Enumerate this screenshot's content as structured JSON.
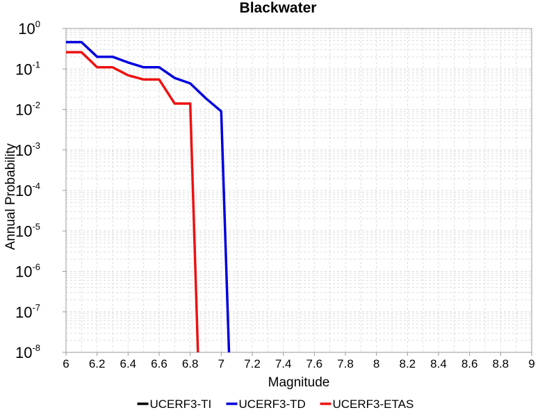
{
  "chart_data": {
    "type": "line",
    "title": "Blackwater",
    "xlabel": "Magnitude",
    "ylabel": "Annual Probability",
    "xlim": [
      6,
      9
    ],
    "ylim": [
      1e-08,
      1
    ],
    "yscale": "log",
    "grid": true,
    "legend_position": "bottom",
    "x_ticks": [
      "6",
      "6.2",
      "6.4",
      "6.6",
      "6.8",
      "7",
      "7.2",
      "7.4",
      "7.6",
      "7.8",
      "8",
      "8.2",
      "8.4",
      "8.6",
      "8.8",
      "9"
    ],
    "y_ticks": [
      {
        "base": "10",
        "exp": "-8"
      },
      {
        "base": "10",
        "exp": "-7"
      },
      {
        "base": "10",
        "exp": "-6"
      },
      {
        "base": "10",
        "exp": "-5"
      },
      {
        "base": "10",
        "exp": "-4"
      },
      {
        "base": "10",
        "exp": "-3"
      },
      {
        "base": "10",
        "exp": "-2"
      },
      {
        "base": "10",
        "exp": "-1"
      },
      {
        "base": "10",
        "exp": "0"
      }
    ],
    "series": [
      {
        "name": "UCERF3-TI",
        "color": "#000000",
        "x": [],
        "y": []
      },
      {
        "name": "UCERF3-TD",
        "color": "#0000dd",
        "x": [
          6.0,
          6.1,
          6.2,
          6.3,
          6.4,
          6.5,
          6.6,
          6.7,
          6.8,
          6.9,
          7.0,
          7.05
        ],
        "y": [
          0.46,
          0.46,
          0.2,
          0.2,
          0.145,
          0.11,
          0.11,
          0.06,
          0.044,
          0.019,
          0.009,
          1e-08
        ]
      },
      {
        "name": "UCERF3-ETAS",
        "color": "#ee1111",
        "x": [
          6.0,
          6.1,
          6.2,
          6.3,
          6.4,
          6.5,
          6.6,
          6.7,
          6.8,
          6.85
        ],
        "y": [
          0.26,
          0.26,
          0.11,
          0.11,
          0.07,
          0.055,
          0.055,
          0.014,
          0.014,
          1e-08
        ]
      }
    ]
  }
}
